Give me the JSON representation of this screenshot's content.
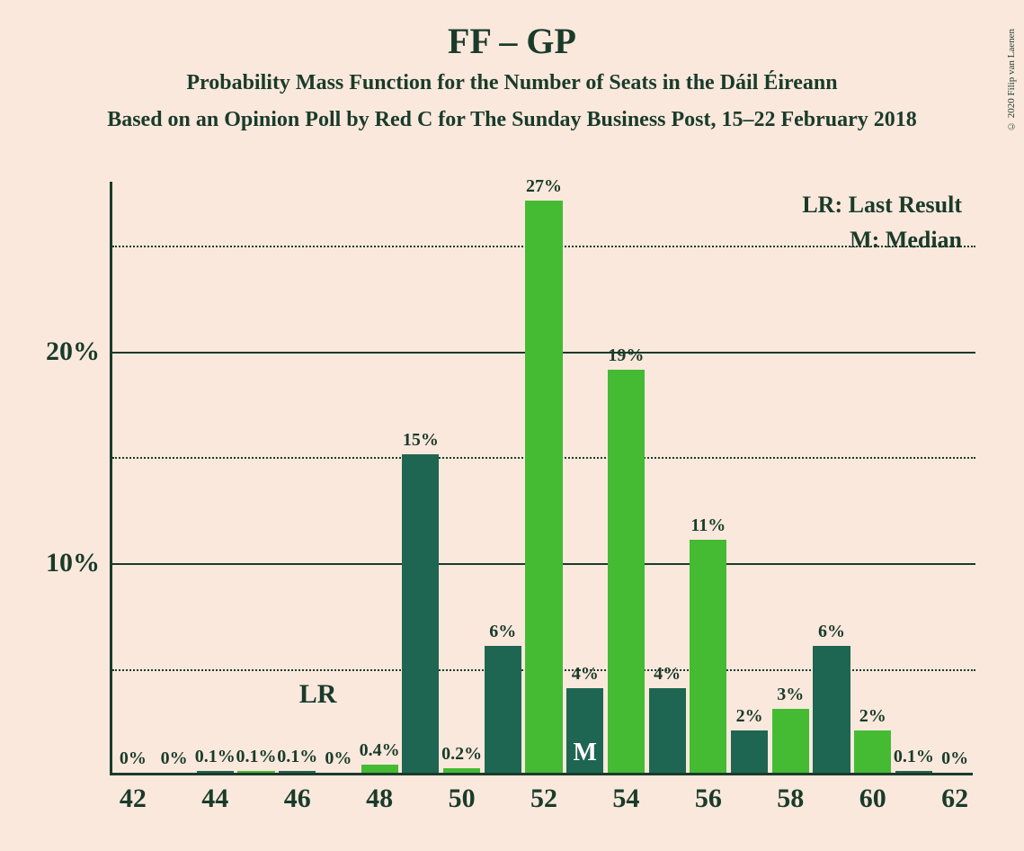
{
  "titles": {
    "main": "FF – GP",
    "subtitle": "Probability Mass Function for the Number of Seats in the Dáil Éireann",
    "source": "Based on an Opinion Poll by Red C for The Sunday Business Post, 15–22 February 2018"
  },
  "copyright": "© 2020 Filip van Laenen",
  "legend": {
    "lr": "LR: Last Result",
    "m": "M: Median"
  },
  "chart": {
    "type": "bar",
    "background_color": "#fae8dd",
    "axis_color": "#1a3b2a",
    "text_color": "#1a3b2a",
    "ymax": 28,
    "y_ticks_solid": [
      10,
      20
    ],
    "y_ticks_dotted": [
      5,
      15,
      25
    ],
    "y_tick_labels": {
      "10": "10%",
      "20": "20%"
    },
    "x_ticks": [
      42,
      44,
      46,
      48,
      50,
      52,
      54,
      56,
      58,
      60,
      62
    ],
    "x_min": 41.5,
    "x_max": 62.5,
    "bar_width": 0.9,
    "colors": {
      "dark": "#1e6651",
      "light": "#44bb33"
    },
    "lr_annotation": {
      "x": 46.5,
      "label": "LR"
    },
    "median_bar_x": 53,
    "median_label": "M",
    "bars": [
      {
        "x": 42,
        "value": 0,
        "label": "0%",
        "color": "dark"
      },
      {
        "x": 43,
        "value": 0,
        "label": "0%",
        "color": "light"
      },
      {
        "x": 44,
        "value": 0.1,
        "label": "0.1%",
        "color": "dark"
      },
      {
        "x": 45,
        "value": 0.1,
        "label": "0.1%",
        "color": "light"
      },
      {
        "x": 46,
        "value": 0.1,
        "label": "0.1%",
        "color": "dark"
      },
      {
        "x": 47,
        "value": 0,
        "label": "0%",
        "color": "light"
      },
      {
        "x": 48,
        "value": 0.4,
        "label": "0.4%",
        "color": "light"
      },
      {
        "x": 49,
        "value": 15,
        "label": "15%",
        "color": "dark"
      },
      {
        "x": 50,
        "value": 0.2,
        "label": "0.2%",
        "color": "light"
      },
      {
        "x": 51,
        "value": 6,
        "label": "6%",
        "color": "dark"
      },
      {
        "x": 52,
        "value": 27,
        "label": "27%",
        "color": "light"
      },
      {
        "x": 53,
        "value": 4,
        "label": "4%",
        "color": "dark"
      },
      {
        "x": 54,
        "value": 19,
        "label": "19%",
        "color": "light"
      },
      {
        "x": 55,
        "value": 4,
        "label": "4%",
        "color": "dark"
      },
      {
        "x": 56,
        "value": 11,
        "label": "11%",
        "color": "light"
      },
      {
        "x": 57,
        "value": 2,
        "label": "2%",
        "color": "dark"
      },
      {
        "x": 58,
        "value": 3,
        "label": "3%",
        "color": "light"
      },
      {
        "x": 59,
        "value": 6,
        "label": "6%",
        "color": "dark"
      },
      {
        "x": 60,
        "value": 2,
        "label": "2%",
        "color": "light"
      },
      {
        "x": 61,
        "value": 0.1,
        "label": "0.1%",
        "color": "dark"
      },
      {
        "x": 62,
        "value": 0,
        "label": "0%",
        "color": "light"
      }
    ]
  }
}
